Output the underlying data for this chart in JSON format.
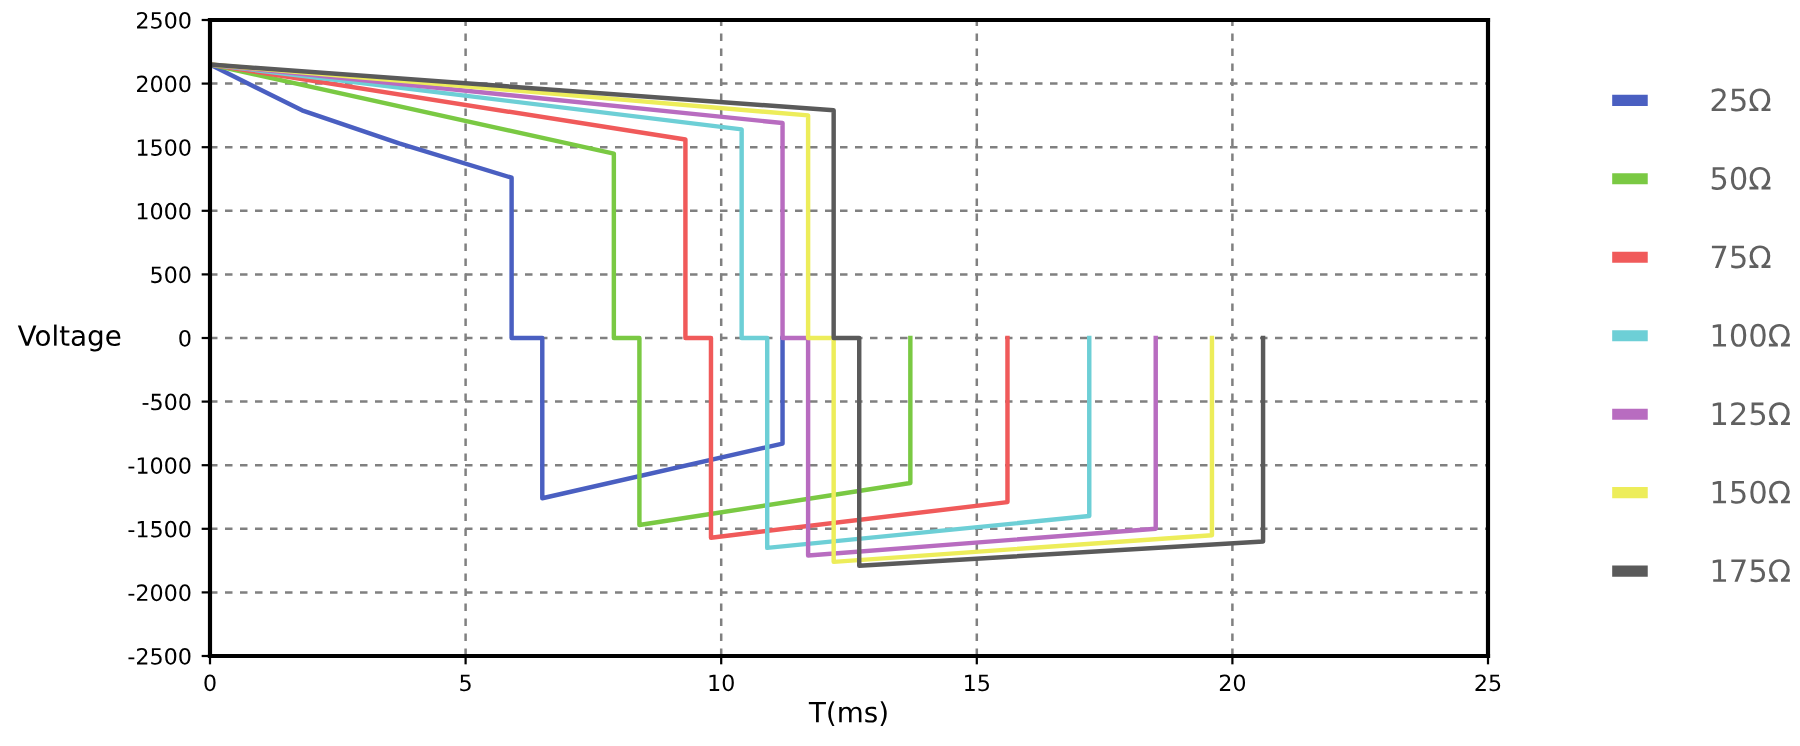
{
  "chart_data": {
    "type": "line",
    "xlabel": "T(ms)",
    "ylabel": "Voltage",
    "xlim": [
      0,
      25
    ],
    "ylim": [
      -2500,
      2500
    ],
    "xticks": [
      0,
      5,
      10,
      15,
      20,
      25
    ],
    "yticks": [
      -2500,
      -2000,
      -1500,
      -1000,
      -500,
      0,
      500,
      1000,
      1500,
      2000,
      2500
    ],
    "grid": true,
    "legend": "right",
    "marker": "none",
    "line_style": "solid",
    "series": [
      {
        "name": "25Ω",
        "color": "#4a5fc1",
        "x": [
          0,
          1.8,
          3.7,
          5.9,
          5.9,
          6.5,
          6.5,
          11.2,
          11.2
        ],
        "values": [
          2150,
          1790,
          1530,
          1260,
          0,
          0,
          -1260,
          -830,
          0
        ]
      },
      {
        "name": "50Ω",
        "color": "#7ac943",
        "x": [
          0,
          7.9,
          7.9,
          8.4,
          8.4,
          13.7,
          13.7
        ],
        "values": [
          2150,
          1450,
          0,
          0,
          -1470,
          -1140,
          0
        ]
      },
      {
        "name": "75Ω",
        "color": "#f05a5a",
        "x": [
          0,
          9.3,
          9.3,
          9.8,
          9.8,
          15.6,
          15.6
        ],
        "values": [
          2150,
          1560,
          0,
          0,
          -1570,
          -1290,
          0
        ]
      },
      {
        "name": "100Ω",
        "color": "#6dcfd6",
        "x": [
          0,
          10.4,
          10.4,
          10.9,
          10.9,
          17.2,
          17.2
        ],
        "values": [
          2150,
          1640,
          0,
          0,
          -1650,
          -1400,
          0
        ]
      },
      {
        "name": "125Ω",
        "color": "#b86cc0",
        "x": [
          0,
          11.2,
          11.2,
          11.7,
          11.7,
          18.5,
          18.5
        ],
        "values": [
          2150,
          1690,
          0,
          0,
          -1710,
          -1500,
          0
        ]
      },
      {
        "name": "150Ω",
        "color": "#eded5a",
        "x": [
          0,
          11.7,
          11.7,
          12.2,
          12.2,
          19.6,
          19.6
        ],
        "values": [
          2150,
          1750,
          0,
          0,
          -1760,
          -1550,
          0
        ]
      },
      {
        "name": "175Ω",
        "color": "#5a5a5a",
        "x": [
          0,
          12.2,
          12.2,
          12.7,
          12.7,
          20.6,
          20.6
        ],
        "values": [
          2150,
          1790,
          0,
          0,
          -1790,
          -1600,
          0
        ]
      }
    ]
  }
}
